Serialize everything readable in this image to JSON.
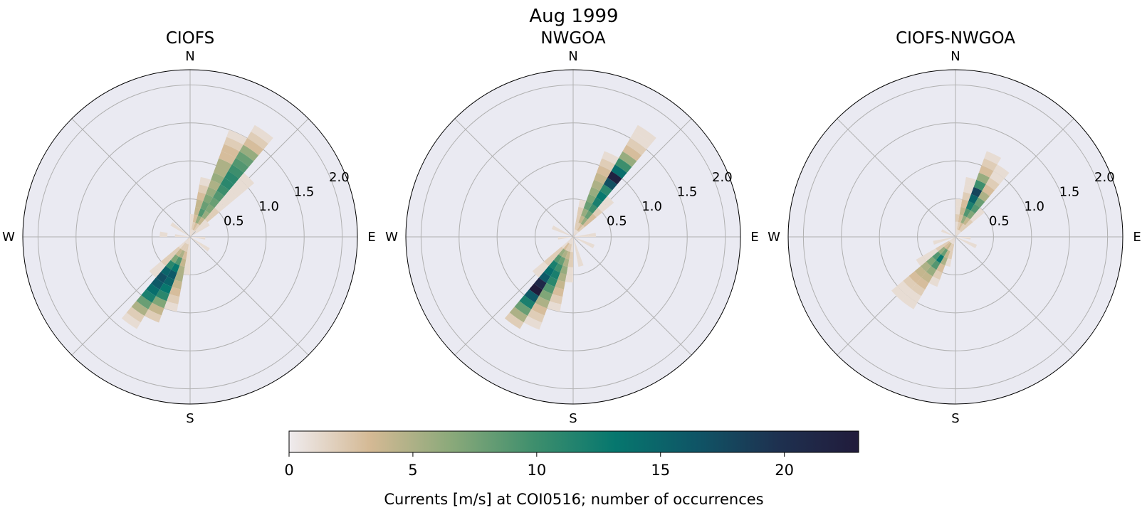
{
  "suptitle": "Aug 1999",
  "colors": {
    "panel_bg": "#eaeaf2",
    "grid": "#b0b0b0",
    "colormap": [
      "#efebee",
      "#d4b994",
      "#8aa97a",
      "#3f8f6d",
      "#06776e",
      "#0f5566",
      "#1e3150",
      "#211b3b"
    ]
  },
  "chart_data": [
    {
      "type": "polar-histogram",
      "title": "CIOFS",
      "direction_labels": [
        "N",
        "E",
        "S",
        "W"
      ],
      "radial_ticks": [
        0.5,
        1.0,
        1.5,
        2.0
      ],
      "radial_tick_labels": [
        "0.5",
        "1.0",
        "1.5",
        "2.0"
      ],
      "rmax": 2.2,
      "direction_bins_deg": 10,
      "speed_bin_width": 0.1,
      "cells": [
        {
          "dir": 25,
          "counts": [
            1,
            3,
            6,
            9,
            8,
            7,
            6,
            5,
            6,
            5,
            5,
            3,
            3,
            2,
            1
          ]
        },
        {
          "dir": 35,
          "counts": [
            1,
            2,
            4,
            6,
            7,
            8,
            9,
            10,
            11,
            11,
            10,
            9,
            8,
            6,
            3,
            2,
            1
          ]
        },
        {
          "dir": 45,
          "counts": [
            0,
            1,
            1,
            2,
            2,
            1,
            1,
            1,
            1,
            1,
            1
          ]
        },
        {
          "dir": 15,
          "counts": [
            1,
            2,
            3,
            4,
            4,
            3,
            2,
            1
          ]
        },
        {
          "dir": 55,
          "counts": [
            1,
            1,
            1
          ]
        },
        {
          "dir": 5,
          "counts": [
            1,
            1,
            1
          ]
        },
        {
          "dir": 205,
          "counts": [
            1,
            2,
            5,
            9,
            13,
            16,
            15,
            13,
            11,
            7,
            4,
            2
          ]
        },
        {
          "dir": 215,
          "counts": [
            1,
            2,
            4,
            7,
            11,
            15,
            17,
            16,
            14,
            12,
            8,
            5,
            2,
            1
          ]
        },
        {
          "dir": 195,
          "counts": [
            1,
            2,
            3,
            4,
            5,
            5,
            4,
            3,
            2,
            1
          ]
        },
        {
          "dir": 225,
          "counts": [
            1,
            1,
            2,
            2,
            2,
            1,
            1
          ]
        },
        {
          "dir": 185,
          "counts": [
            1,
            1,
            1,
            1,
            1
          ]
        },
        {
          "dir": 125,
          "counts": [
            1,
            1,
            1
          ]
        },
        {
          "dir": 305,
          "counts": [
            1,
            1,
            1
          ]
        },
        {
          "dir": 275,
          "counts": [
            1,
            1,
            0,
            1
          ]
        },
        {
          "dir": 95,
          "counts": [
            1,
            1
          ]
        }
      ]
    },
    {
      "type": "polar-histogram",
      "title": "NWGOA",
      "direction_labels": [
        "N",
        "E",
        "S",
        "W"
      ],
      "radial_ticks": [
        0.5,
        1.0,
        1.5,
        2.0
      ],
      "radial_tick_labels": [
        "0.5",
        "1.0",
        "1.5",
        "2.0"
      ],
      "rmax": 2.2,
      "direction_bins_deg": 10,
      "speed_bin_width": 0.1,
      "cells": [
        {
          "dir": 35,
          "counts": [
            1,
            3,
            6,
            8,
            10,
            12,
            13,
            11,
            17,
            22,
            14,
            10,
            6,
            3,
            2,
            1,
            1
          ]
        },
        {
          "dir": 25,
          "counts": [
            1,
            2,
            4,
            6,
            8,
            7,
            6,
            5,
            4,
            3,
            2,
            1
          ]
        },
        {
          "dir": 45,
          "counts": [
            1,
            2,
            3,
            3,
            2,
            1,
            1
          ]
        },
        {
          "dir": 15,
          "counts": [
            1,
            2,
            2,
            2,
            1
          ]
        },
        {
          "dir": 215,
          "counts": [
            1,
            3,
            6,
            9,
            12,
            14,
            16,
            21,
            23,
            16,
            12,
            8,
            5,
            2
          ]
        },
        {
          "dir": 205,
          "counts": [
            1,
            2,
            5,
            8,
            10,
            12,
            11,
            9,
            7,
            5,
            3,
            2,
            1
          ]
        },
        {
          "dir": 195,
          "counts": [
            1,
            2,
            4,
            5,
            6,
            5,
            4,
            3,
            2,
            1
          ]
        },
        {
          "dir": 225,
          "counts": [
            1,
            1,
            2,
            2,
            2,
            1,
            1
          ]
        },
        {
          "dir": 185,
          "counts": [
            1,
            1,
            2,
            2,
            1,
            1
          ]
        },
        {
          "dir": 165,
          "counts": [
            1,
            1,
            1,
            1
          ]
        },
        {
          "dir": 115,
          "counts": [
            1,
            1,
            1
          ]
        },
        {
          "dir": 295,
          "counts": [
            1,
            1,
            1
          ]
        },
        {
          "dir": 265,
          "counts": [
            1,
            1
          ]
        },
        {
          "dir": 85,
          "counts": [
            1,
            1,
            1
          ]
        }
      ]
    },
    {
      "type": "polar-histogram",
      "title": "CIOFS-NWGOA",
      "direction_labels": [
        "N",
        "E",
        "S",
        "W"
      ],
      "radial_ticks": [
        0.5,
        1.0,
        1.5,
        2.0
      ],
      "radial_tick_labels": [
        "0.5",
        "1.0",
        "1.5",
        "2.0"
      ],
      "rmax": 2.2,
      "direction_bins_deg": 10,
      "speed_bin_width": 0.1,
      "cells": [
        {
          "dir": 25,
          "counts": [
            1,
            3,
            6,
            9,
            12,
            15,
            18,
            10,
            6,
            3,
            2,
            1
          ]
        },
        {
          "dir": 35,
          "counts": [
            1,
            2,
            4,
            7,
            9,
            8,
            5,
            3,
            2,
            1,
            1
          ]
        },
        {
          "dir": 15,
          "counts": [
            1,
            2,
            3,
            4,
            3,
            2,
            1,
            1
          ]
        },
        {
          "dir": 5,
          "counts": [
            1,
            1,
            2,
            1,
            1
          ]
        },
        {
          "dir": 45,
          "counts": [
            1,
            2,
            2,
            1,
            1
          ]
        },
        {
          "dir": 215,
          "counts": [
            1,
            4,
            8,
            13,
            9,
            6,
            4,
            3,
            2,
            1,
            1
          ]
        },
        {
          "dir": 225,
          "counts": [
            1,
            3,
            6,
            9,
            7,
            5,
            4,
            3,
            2,
            1,
            1
          ]
        },
        {
          "dir": 205,
          "counts": [
            1,
            2,
            4,
            5,
            3,
            2,
            1
          ]
        },
        {
          "dir": 235,
          "counts": [
            1,
            2,
            2,
            1,
            1,
            1
          ]
        },
        {
          "dir": 195,
          "counts": [
            1,
            2,
            2,
            1
          ]
        },
        {
          "dir": 115,
          "counts": [
            1,
            1,
            1
          ]
        },
        {
          "dir": 95,
          "counts": [
            1,
            1
          ]
        },
        {
          "dir": 295,
          "counts": [
            1,
            1
          ]
        },
        {
          "dir": 255,
          "counts": [
            1,
            1,
            1
          ]
        }
      ]
    }
  ],
  "colorbar": {
    "label": "Currents [m/s] at COI0516; number of occurrences",
    "vmin": 0,
    "vmax": 23,
    "ticks": [
      0,
      5,
      10,
      15,
      20
    ],
    "tick_labels": [
      "0",
      "5",
      "10",
      "15",
      "20"
    ]
  }
}
